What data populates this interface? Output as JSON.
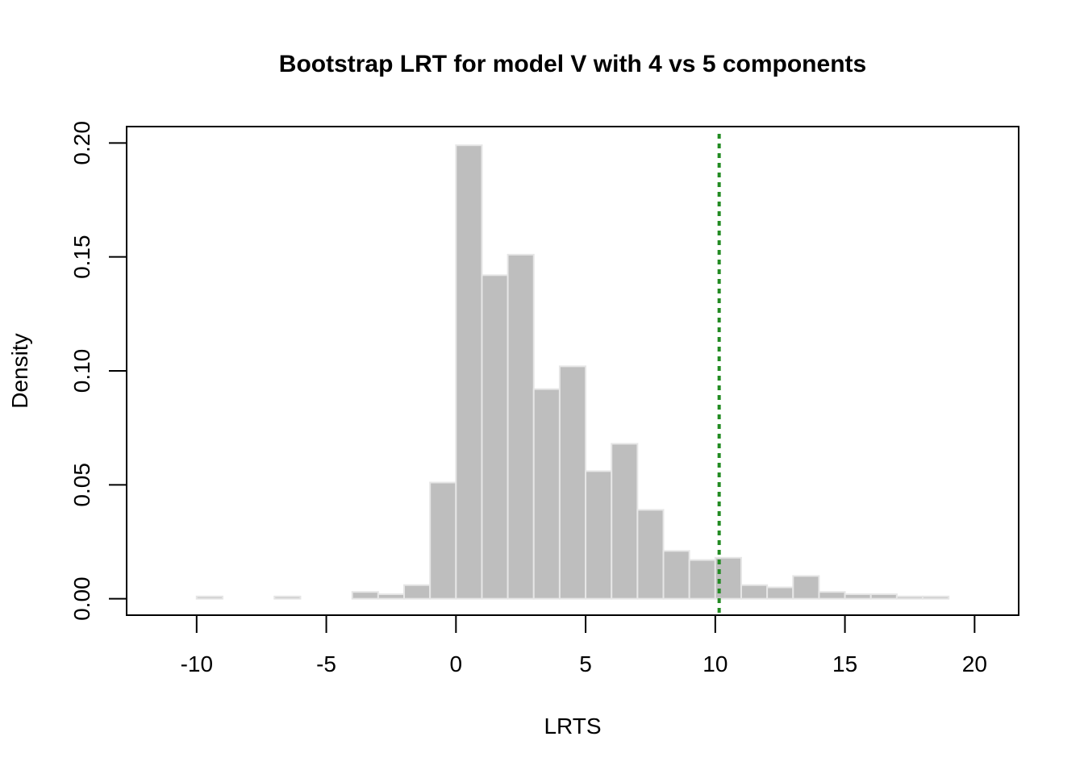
{
  "chart_data": {
    "type": "bar",
    "title": "Bootstrap LRT for model V with 4 vs 5 components",
    "xlabel": "LRTS",
    "ylabel": "Density",
    "xlim": [
      -12.7,
      21.7
    ],
    "ylim": [
      -0.0072,
      0.2072
    ],
    "x_ticks": [
      -10,
      -5,
      0,
      5,
      10,
      15,
      20
    ],
    "x_tick_labels": [
      "-10",
      "-5",
      "0",
      "5",
      "10",
      "15",
      "20"
    ],
    "y_ticks": [
      0.0,
      0.05,
      0.1,
      0.15,
      0.2
    ],
    "y_tick_labels": [
      "0.00",
      "0.05",
      "0.10",
      "0.15",
      "0.20"
    ],
    "grid": false,
    "bins": {
      "breaks": [
        -10,
        -9,
        -8,
        -7,
        -6,
        -5,
        -4,
        -3,
        -2,
        -1,
        0,
        1,
        2,
        3,
        4,
        5,
        6,
        7,
        8,
        9,
        10,
        11,
        12,
        13,
        14,
        15,
        16,
        17,
        18,
        19
      ],
      "density": [
        0.001,
        0.0,
        0.0,
        0.001,
        0.0,
        0.0,
        0.003,
        0.002,
        0.006,
        0.051,
        0.199,
        0.142,
        0.151,
        0.092,
        0.102,
        0.056,
        0.068,
        0.039,
        0.021,
        0.017,
        0.018,
        0.006,
        0.005,
        0.01,
        0.003,
        0.002,
        0.002,
        0.001,
        0.001
      ]
    },
    "reference_line": {
      "x": 10.15,
      "style": "dotted"
    },
    "colors": {
      "bar_fill": "#bebebe",
      "bar_border": "#e6e6e6",
      "reference_line": "#228b22",
      "axis": "#000000"
    }
  }
}
